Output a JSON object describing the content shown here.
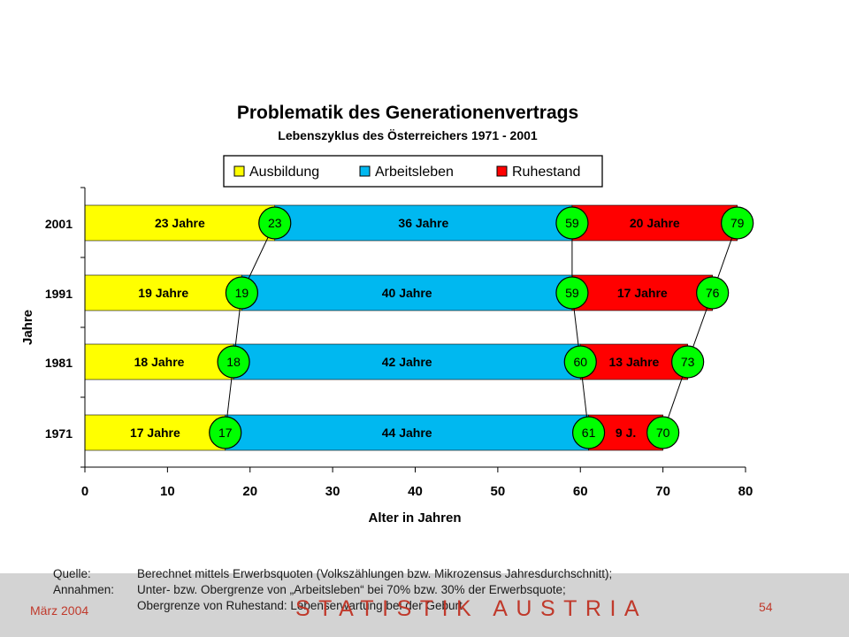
{
  "chart_data": {
    "type": "bar",
    "title": "Problematik des Generationenvertrags",
    "subtitle": "Lebenszyklus des Österreichers 1971 - 2001",
    "xlabel": "Alter in Jahren",
    "ylabel": "Jahre",
    "xlim": [
      0,
      80
    ],
    "x_ticks": [
      0,
      10,
      20,
      30,
      40,
      50,
      60,
      70,
      80
    ],
    "grid": false,
    "legend_position": "top",
    "categories": [
      "2001",
      "1991",
      "1981",
      "1971"
    ],
    "series": [
      {
        "name": "Ausbildung",
        "color": "#ffff00",
        "values": [
          23,
          19,
          18,
          17
        ],
        "labels": [
          "23 Jahre",
          "19 Jahre",
          "18 Jahre",
          "17 Jahre"
        ]
      },
      {
        "name": "Arbeitsleben",
        "color": "#00b8f0",
        "values": [
          36,
          40,
          42,
          44
        ],
        "labels": [
          "36 Jahre",
          "40 Jahre",
          "42 Jahre",
          "44 Jahre"
        ]
      },
      {
        "name": "Ruhestand",
        "color": "#ff0000",
        "values": [
          20,
          17,
          13,
          9
        ],
        "labels": [
          "20 Jahre",
          "17 Jahre",
          "13 Jahre",
          "9 J."
        ]
      }
    ],
    "markers": {
      "color": "#00ff00",
      "end_of_education": [
        23,
        19,
        18,
        17
      ],
      "retirement_age": [
        59,
        59,
        60,
        61
      ],
      "life_expectancy": [
        79,
        76,
        73,
        70
      ],
      "labels": {
        "end_of_education": [
          "23",
          "19",
          "18",
          "17"
        ],
        "retirement_age": [
          "59",
          "59",
          "60",
          "61"
        ],
        "life_expectancy": [
          "79",
          "76",
          "73",
          "70"
        ]
      }
    }
  },
  "footer": {
    "source_label": "Quelle:",
    "source_text": "Berechnet mittels Erwerbsquoten (Volkszählungen bzw. Mikrozensus Jahresdurchschnitt);",
    "assumptions_label": "Annahmen:",
    "assumptions_line1": "Unter- bzw. Obergrenze von „Arbeitsleben“ bei 70% bzw. 30% der Erwerbsquote;",
    "assumptions_line2": "Obergrenze von Ruhestand: Lebenserwartung bei der Geburt",
    "date": "März 2004",
    "brand": "STATISTIK AUSTRIA",
    "page_number": "54",
    "band_color": "#d3d3d3",
    "accent_color": "#c0392b"
  }
}
